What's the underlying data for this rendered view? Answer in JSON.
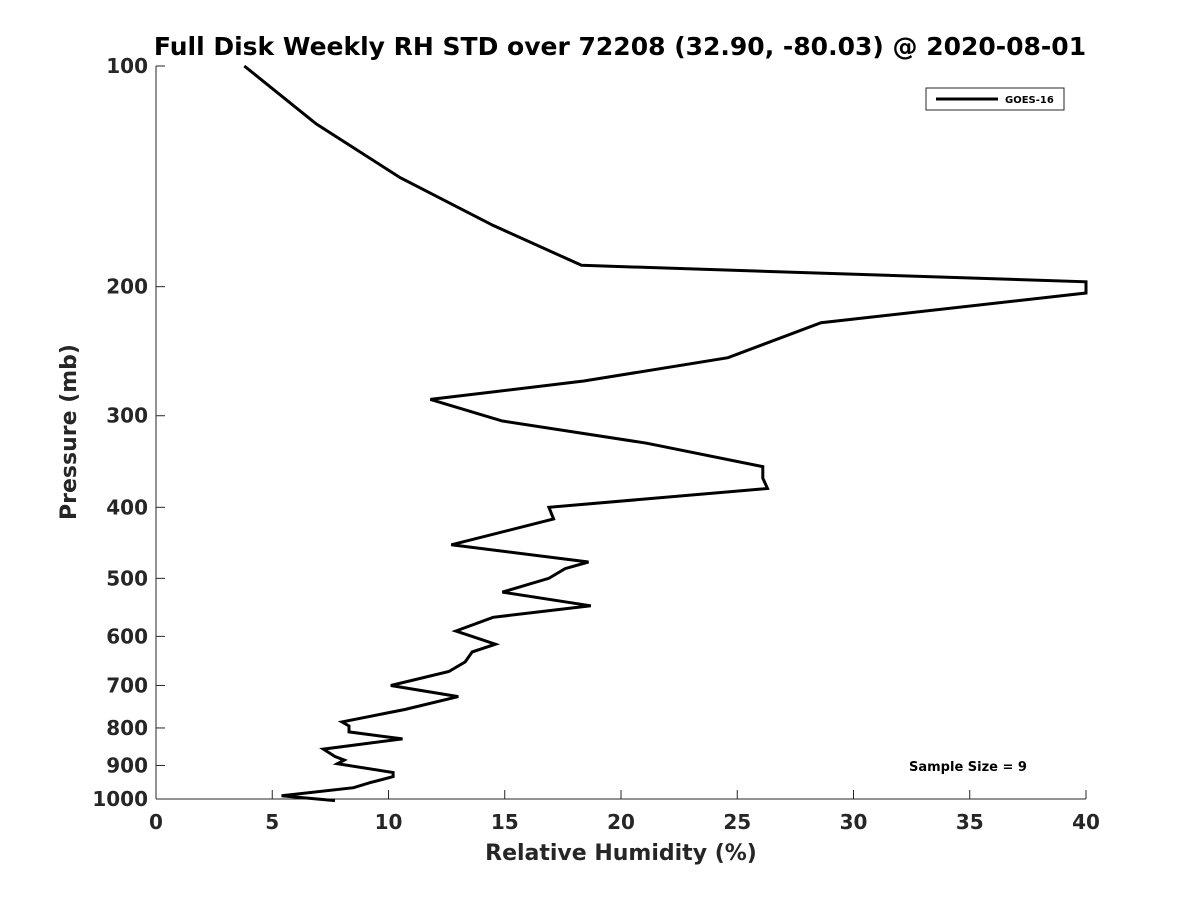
{
  "chart_data": {
    "type": "line",
    "title": "Full Disk Weekly RH STD over 72208 (32.90, -80.03) @ 2020-08-01",
    "xlabel": "Relative Humidity (%)",
    "ylabel": "Pressure (mb)",
    "xlim": [
      0,
      40
    ],
    "ylim": [
      1000,
      100
    ],
    "yscale": "log",
    "grid": false,
    "legend_position": "top-right",
    "note": "Sample Size = 9",
    "xticks": [
      0,
      5,
      10,
      15,
      20,
      25,
      30,
      35,
      40
    ],
    "yticks": [
      100,
      200,
      300,
      400,
      500,
      600,
      700,
      800,
      900,
      1000
    ],
    "series": [
      {
        "name": "GOES-16",
        "color": "#000000",
        "x": [
          3.8,
          6.9,
          10.5,
          14.5,
          18.3,
          40.0,
          40.0,
          28.6,
          24.6,
          18.4,
          11.8,
          14.9,
          21.1,
          26.1,
          26.1,
          26.3,
          16.9,
          17.1,
          12.7,
          18.6,
          17.6,
          16.9,
          14.9,
          18.7,
          14.5,
          12.9,
          14.6,
          13.6,
          13.3,
          12.6,
          10.1,
          13.0,
          10.7,
          8.0,
          8.3,
          8.3,
          10.6,
          7.2,
          7.7,
          8.1,
          7.8,
          10.2,
          10.2,
          9.2,
          8.5,
          5.4,
          7.7
        ],
        "y": [
          100,
          120,
          142,
          165,
          187,
          197,
          204,
          224,
          250,
          269,
          285,
          305,
          327,
          352,
          365,
          377,
          400,
          415,
          450,
          475,
          485,
          500,
          522,
          545,
          565,
          590,
          615,
          630,
          650,
          670,
          700,
          725,
          755,
          785,
          795,
          810,
          828,
          855,
          875,
          885,
          895,
          920,
          932,
          950,
          965,
          990,
          1005
        ]
      }
    ]
  }
}
